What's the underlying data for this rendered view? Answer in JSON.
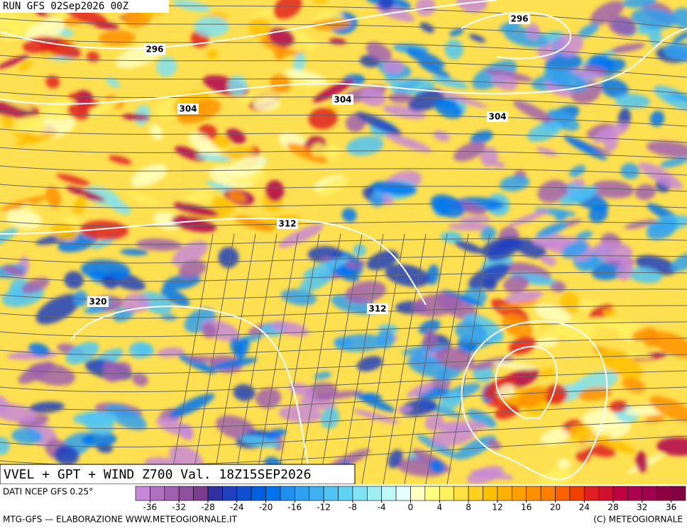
{
  "header": {
    "run": "RUN GFS 02Sep2026 00Z"
  },
  "contour_labels": [
    "296",
    "296",
    "304",
    "304",
    "304",
    "312",
    "312",
    "320"
  ],
  "title": "VVEL + GPT + WIND Z700 Val. 18Z15SEP2026",
  "source": "DATI NCEP GFS 0.25°",
  "legend": {
    "ticks": [
      -36,
      -32,
      -28,
      -24,
      -20,
      -16,
      -12,
      -8,
      -4,
      0,
      4,
      8,
      12,
      16,
      20,
      24,
      28,
      32,
      36
    ],
    "range": [
      -38,
      38
    ],
    "colors": [
      "#c888d8",
      "#b070c0",
      "#a060b0",
      "#9050a0",
      "#7a3c8c",
      "#3030a0",
      "#2040c0",
      "#1050d0",
      "#0060e0",
      "#0074f0",
      "#2090f0",
      "#30a0f0",
      "#40b0f0",
      "#50c4f4",
      "#60d4f4",
      "#80e2f2",
      "#a0eef2",
      "#c0f8f8",
      "#e4ffff",
      "#ffffc0",
      "#ffff80",
      "#fff060",
      "#ffe040",
      "#ffd020",
      "#ffc000",
      "#ffb000",
      "#ffa000",
      "#ff9000",
      "#ff8000",
      "#ff6000",
      "#f04000",
      "#e02020",
      "#d01030",
      "#c00040",
      "#b00050",
      "#a00050",
      "#900040",
      "#800040"
    ]
  },
  "footer_left": "MTG-GFS — ELABORAZIONE WWW.METEOGIORNALE.IT",
  "footer_right": "(C) METEOGIORNALE"
}
